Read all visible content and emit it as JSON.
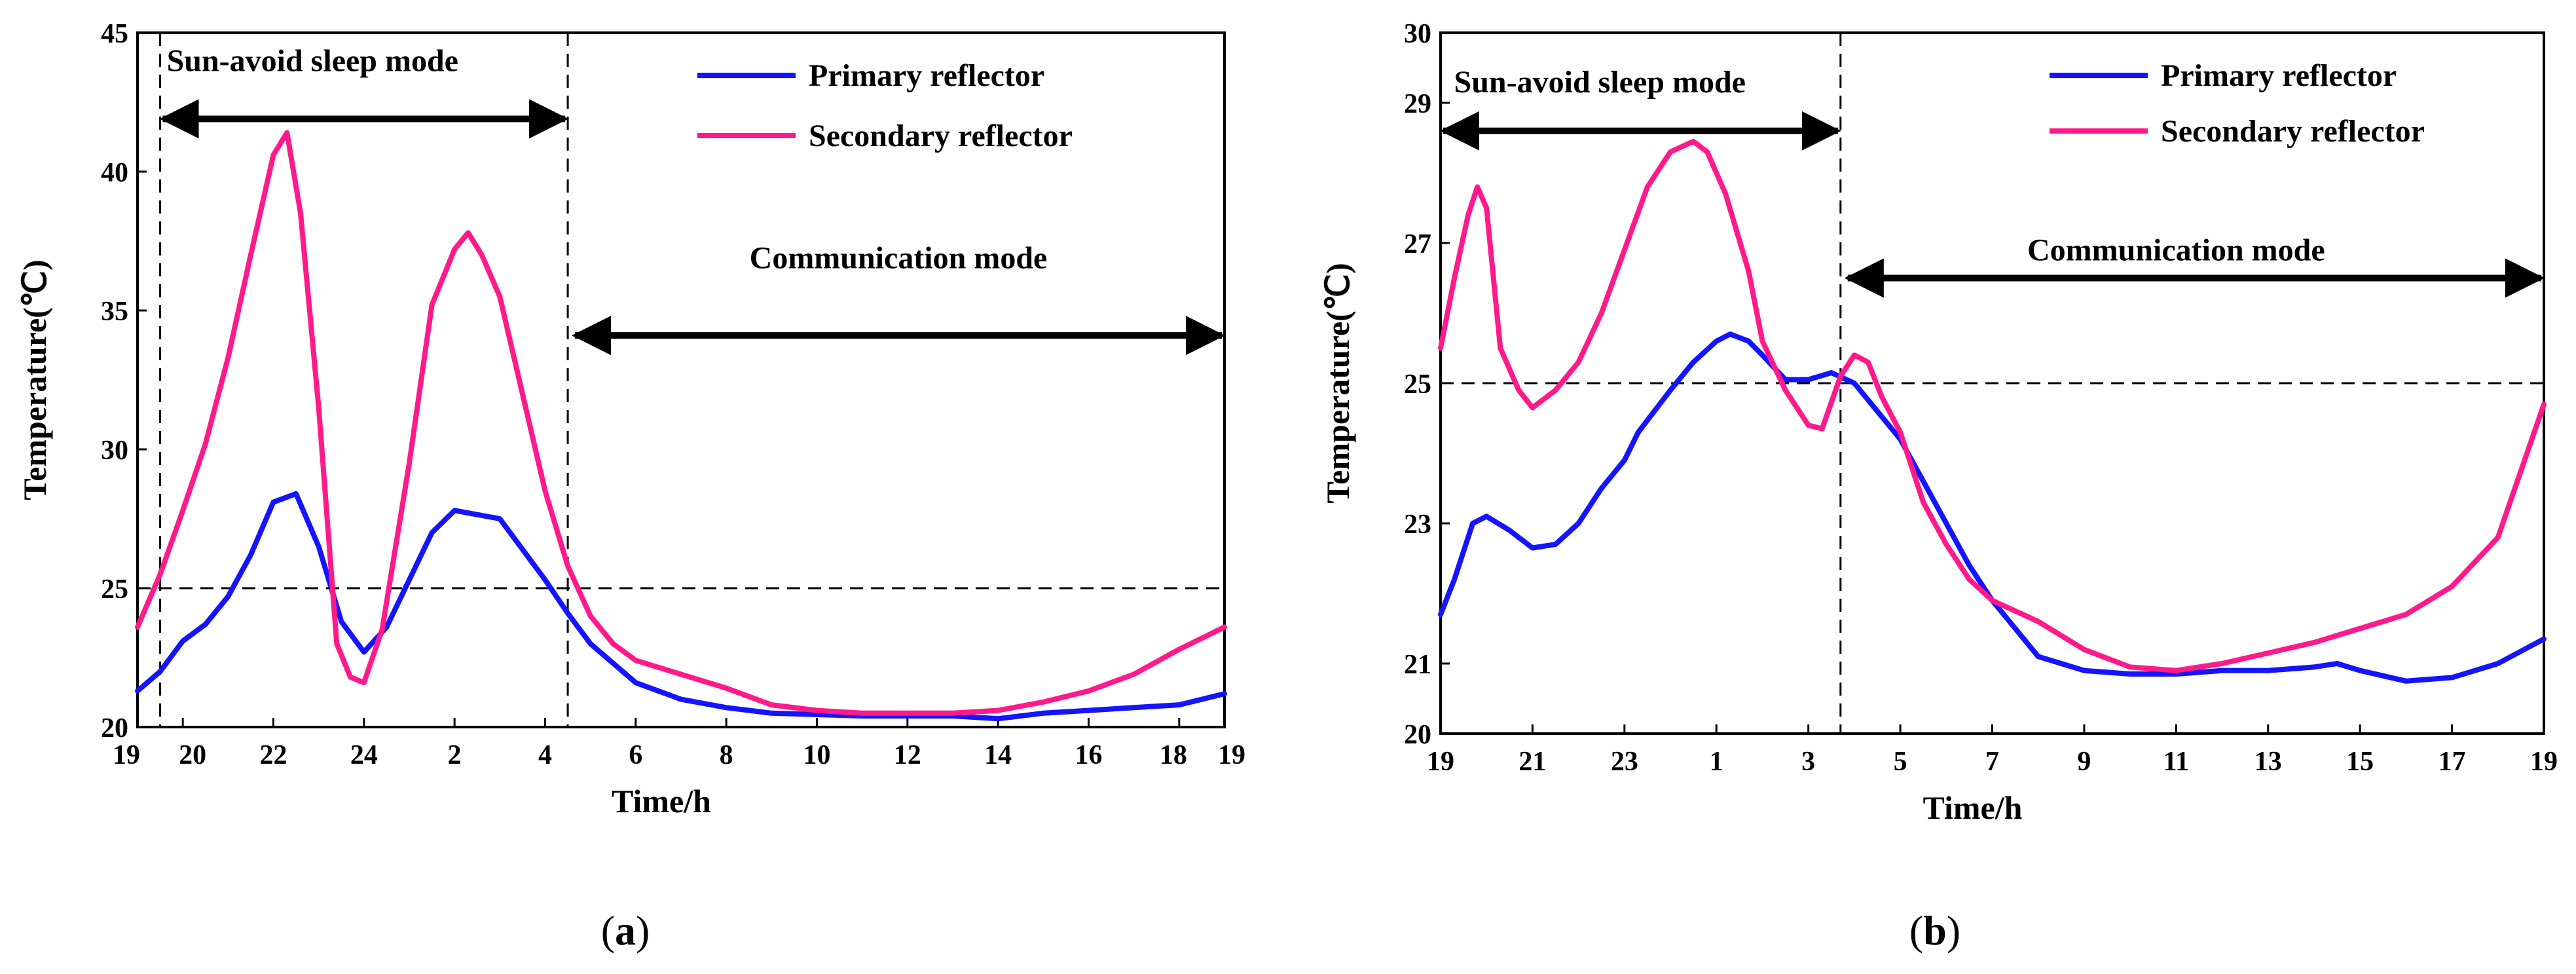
{
  "chart_data": [
    {
      "type": "line",
      "panel_label": [
        "(",
        "a",
        ")"
      ],
      "xlabel": "Time/h",
      "ylabel": "Temperature(℃)",
      "ylim": [
        20,
        45
      ],
      "yticks": [
        20,
        25,
        30,
        35,
        40,
        45
      ],
      "xlim": [
        0,
        24
      ],
      "xtick_labels": [
        {
          "x": 0,
          "label": "19"
        },
        {
          "x": 1,
          "label": "20"
        },
        {
          "x": 3,
          "label": "22"
        },
        {
          "x": 5,
          "label": "24"
        },
        {
          "x": 7,
          "label": "2"
        },
        {
          "x": 9,
          "label": "4"
        },
        {
          "x": 11,
          "label": "6"
        },
        {
          "x": 13,
          "label": "8"
        },
        {
          "x": 15,
          "label": "10"
        },
        {
          "x": 17,
          "label": "12"
        },
        {
          "x": 19,
          "label": "14"
        },
        {
          "x": 21,
          "label": "16"
        },
        {
          "x": 23,
          "label": "18"
        },
        {
          "x": 24,
          "label": "19"
        }
      ],
      "hline": 25,
      "vlines": [
        0.5,
        9.5
      ],
      "annotations": [
        {
          "text": "Sun-avoid sleep mode",
          "x": 0.5,
          "y": 44.0,
          "arrow_from": 0.5,
          "arrow_to": 9.5,
          "arrow_y": 41.9
        },
        {
          "text": "Communication mode",
          "x": 16.8,
          "y": 36.9,
          "arrow_from": 9.6,
          "arrow_to": 24,
          "arrow_y": 34.1
        }
      ],
      "series": [
        {
          "name": "Primary reflector",
          "color": "#1414ff",
          "points": [
            [
              0,
              21.3
            ],
            [
              0.5,
              22.0
            ],
            [
              1,
              23.1
            ],
            [
              1.5,
              23.7
            ],
            [
              2,
              24.7
            ],
            [
              2.5,
              26.2
            ],
            [
              3,
              28.1
            ],
            [
              3.5,
              28.4
            ],
            [
              4,
              26.5
            ],
            [
              4.5,
              23.8
            ],
            [
              5,
              22.7
            ],
            [
              5.5,
              23.6
            ],
            [
              6,
              25.3
            ],
            [
              6.5,
              27.0
            ],
            [
              7,
              27.8
            ],
            [
              8,
              27.5
            ],
            [
              8.5,
              26.4
            ],
            [
              9,
              25.3
            ],
            [
              9.5,
              24.1
            ],
            [
              10,
              23.0
            ],
            [
              11,
              21.6
            ],
            [
              12,
              21.0
            ],
            [
              13,
              20.7
            ],
            [
              14,
              20.5
            ],
            [
              16,
              20.4
            ],
            [
              18,
              20.4
            ],
            [
              19,
              20.3
            ],
            [
              20,
              20.5
            ],
            [
              21,
              20.6
            ],
            [
              22,
              20.7
            ],
            [
              23,
              20.8
            ],
            [
              24,
              21.2
            ]
          ]
        },
        {
          "name": "Secondary reflector",
          "color": "#ff1a8c",
          "points": [
            [
              0,
              23.6
            ],
            [
              0.5,
              25.5
            ],
            [
              1,
              27.8
            ],
            [
              1.5,
              30.2
            ],
            [
              2,
              33.3
            ],
            [
              2.5,
              37.0
            ],
            [
              3,
              40.6
            ],
            [
              3.3,
              41.4
            ],
            [
              3.6,
              38.5
            ],
            [
              4,
              31.5
            ],
            [
              4.4,
              23.0
            ],
            [
              4.7,
              21.8
            ],
            [
              5,
              21.6
            ],
            [
              5.4,
              23.5
            ],
            [
              6,
              29.5
            ],
            [
              6.5,
              35.2
            ],
            [
              7,
              37.2
            ],
            [
              7.3,
              37.8
            ],
            [
              7.6,
              37.0
            ],
            [
              8,
              35.5
            ],
            [
              8.5,
              32.0
            ],
            [
              9,
              28.5
            ],
            [
              9.5,
              25.8
            ],
            [
              10,
              24.0
            ],
            [
              10.5,
              23.0
            ],
            [
              11,
              22.4
            ],
            [
              12,
              21.9
            ],
            [
              13,
              21.4
            ],
            [
              14,
              20.8
            ],
            [
              15,
              20.6
            ],
            [
              16,
              20.5
            ],
            [
              17,
              20.5
            ],
            [
              18,
              20.5
            ],
            [
              19,
              20.6
            ],
            [
              20,
              20.9
            ],
            [
              21,
              21.3
            ],
            [
              22,
              21.9
            ],
            [
              23,
              22.8
            ],
            [
              24,
              23.6
            ]
          ]
        }
      ]
    },
    {
      "type": "line",
      "panel_label": [
        "(",
        "b",
        ")"
      ],
      "xlabel": "Time/h",
      "ylabel": "Temperature(℃)",
      "ylim": [
        20,
        30
      ],
      "yticks": [
        20,
        21,
        23,
        25,
        27,
        29,
        30
      ],
      "xlim": [
        0,
        24
      ],
      "xtick_labels": [
        {
          "x": 0,
          "label": "19"
        },
        {
          "x": 2,
          "label": "21"
        },
        {
          "x": 4,
          "label": "23"
        },
        {
          "x": 6,
          "label": "1"
        },
        {
          "x": 8,
          "label": "3"
        },
        {
          "x": 10,
          "label": "5"
        },
        {
          "x": 12,
          "label": "7"
        },
        {
          "x": 14,
          "label": "9"
        },
        {
          "x": 16,
          "label": "11"
        },
        {
          "x": 18,
          "label": "13"
        },
        {
          "x": 20,
          "label": "15"
        },
        {
          "x": 22,
          "label": "17"
        },
        {
          "x": 24,
          "label": "19"
        }
      ],
      "hline": 25,
      "vlines": [
        8.7
      ],
      "annotations": [
        {
          "text": "Sun-avoid sleep mode",
          "x": 0.15,
          "y": 29.3,
          "arrow_from": 0,
          "arrow_to": 8.7,
          "arrow_y": 28.6
        },
        {
          "text": "Communication mode",
          "x": 16.0,
          "y": 26.9,
          "arrow_from": 8.8,
          "arrow_to": 24,
          "arrow_y": 26.5
        }
      ],
      "series": [
        {
          "name": "Primary reflector",
          "color": "#1414ff",
          "points": [
            [
              0,
              21.7
            ],
            [
              0.3,
              22.2
            ],
            [
              0.7,
              23.0
            ],
            [
              1,
              23.1
            ],
            [
              1.5,
              22.9
            ],
            [
              2,
              22.65
            ],
            [
              2.5,
              22.7
            ],
            [
              3,
              23.0
            ],
            [
              3.5,
              23.5
            ],
            [
              4,
              23.9
            ],
            [
              4.3,
              24.3
            ],
            [
              5,
              24.9
            ],
            [
              5.5,
              25.3
            ],
            [
              6,
              25.6
            ],
            [
              6.3,
              25.7
            ],
            [
              6.7,
              25.6
            ],
            [
              7,
              25.4
            ],
            [
              7.5,
              25.05
            ],
            [
              8,
              25.05
            ],
            [
              8.5,
              25.15
            ],
            [
              9,
              25.0
            ],
            [
              9.5,
              24.6
            ],
            [
              10,
              24.2
            ],
            [
              10.5,
              23.6
            ],
            [
              11,
              23.0
            ],
            [
              11.5,
              22.4
            ],
            [
              12,
              21.9
            ],
            [
              12.5,
              21.5
            ],
            [
              13,
              21.1
            ],
            [
              14,
              20.9
            ],
            [
              15,
              20.85
            ],
            [
              16,
              20.85
            ],
            [
              17,
              20.9
            ],
            [
              18,
              20.9
            ],
            [
              19,
              20.95
            ],
            [
              19.5,
              21.0
            ],
            [
              20,
              20.9
            ],
            [
              21,
              20.75
            ],
            [
              22,
              20.8
            ],
            [
              23,
              21.0
            ],
            [
              24,
              21.35
            ]
          ]
        },
        {
          "name": "Secondary reflector",
          "color": "#ff1a8c",
          "points": [
            [
              0,
              25.5
            ],
            [
              0.3,
              26.5
            ],
            [
              0.6,
              27.4
            ],
            [
              0.8,
              27.8
            ],
            [
              1,
              27.5
            ],
            [
              1.3,
              25.5
            ],
            [
              1.7,
              24.9
            ],
            [
              2,
              24.65
            ],
            [
              2.5,
              24.9
            ],
            [
              3,
              25.3
            ],
            [
              3.5,
              26.0
            ],
            [
              4,
              26.9
            ],
            [
              4.5,
              27.8
            ],
            [
              5,
              28.3
            ],
            [
              5.5,
              28.45
            ],
            [
              5.8,
              28.3
            ],
            [
              6.2,
              27.7
            ],
            [
              6.7,
              26.6
            ],
            [
              7,
              25.6
            ],
            [
              7.5,
              24.9
            ],
            [
              8,
              24.4
            ],
            [
              8.3,
              24.35
            ],
            [
              8.7,
              25.1
            ],
            [
              9,
              25.4
            ],
            [
              9.3,
              25.3
            ],
            [
              9.6,
              24.8
            ],
            [
              10,
              24.3
            ],
            [
              10.5,
              23.3
            ],
            [
              11,
              22.7
            ],
            [
              11.5,
              22.2
            ],
            [
              12,
              21.9
            ],
            [
              13,
              21.6
            ],
            [
              14,
              21.2
            ],
            [
              15,
              20.95
            ],
            [
              16,
              20.9
            ],
            [
              17,
              21.0
            ],
            [
              18,
              21.15
            ],
            [
              19,
              21.3
            ],
            [
              20,
              21.5
            ],
            [
              21,
              21.7
            ],
            [
              22,
              22.1
            ],
            [
              23,
              22.8
            ],
            [
              24,
              24.7
            ]
          ]
        }
      ]
    }
  ]
}
